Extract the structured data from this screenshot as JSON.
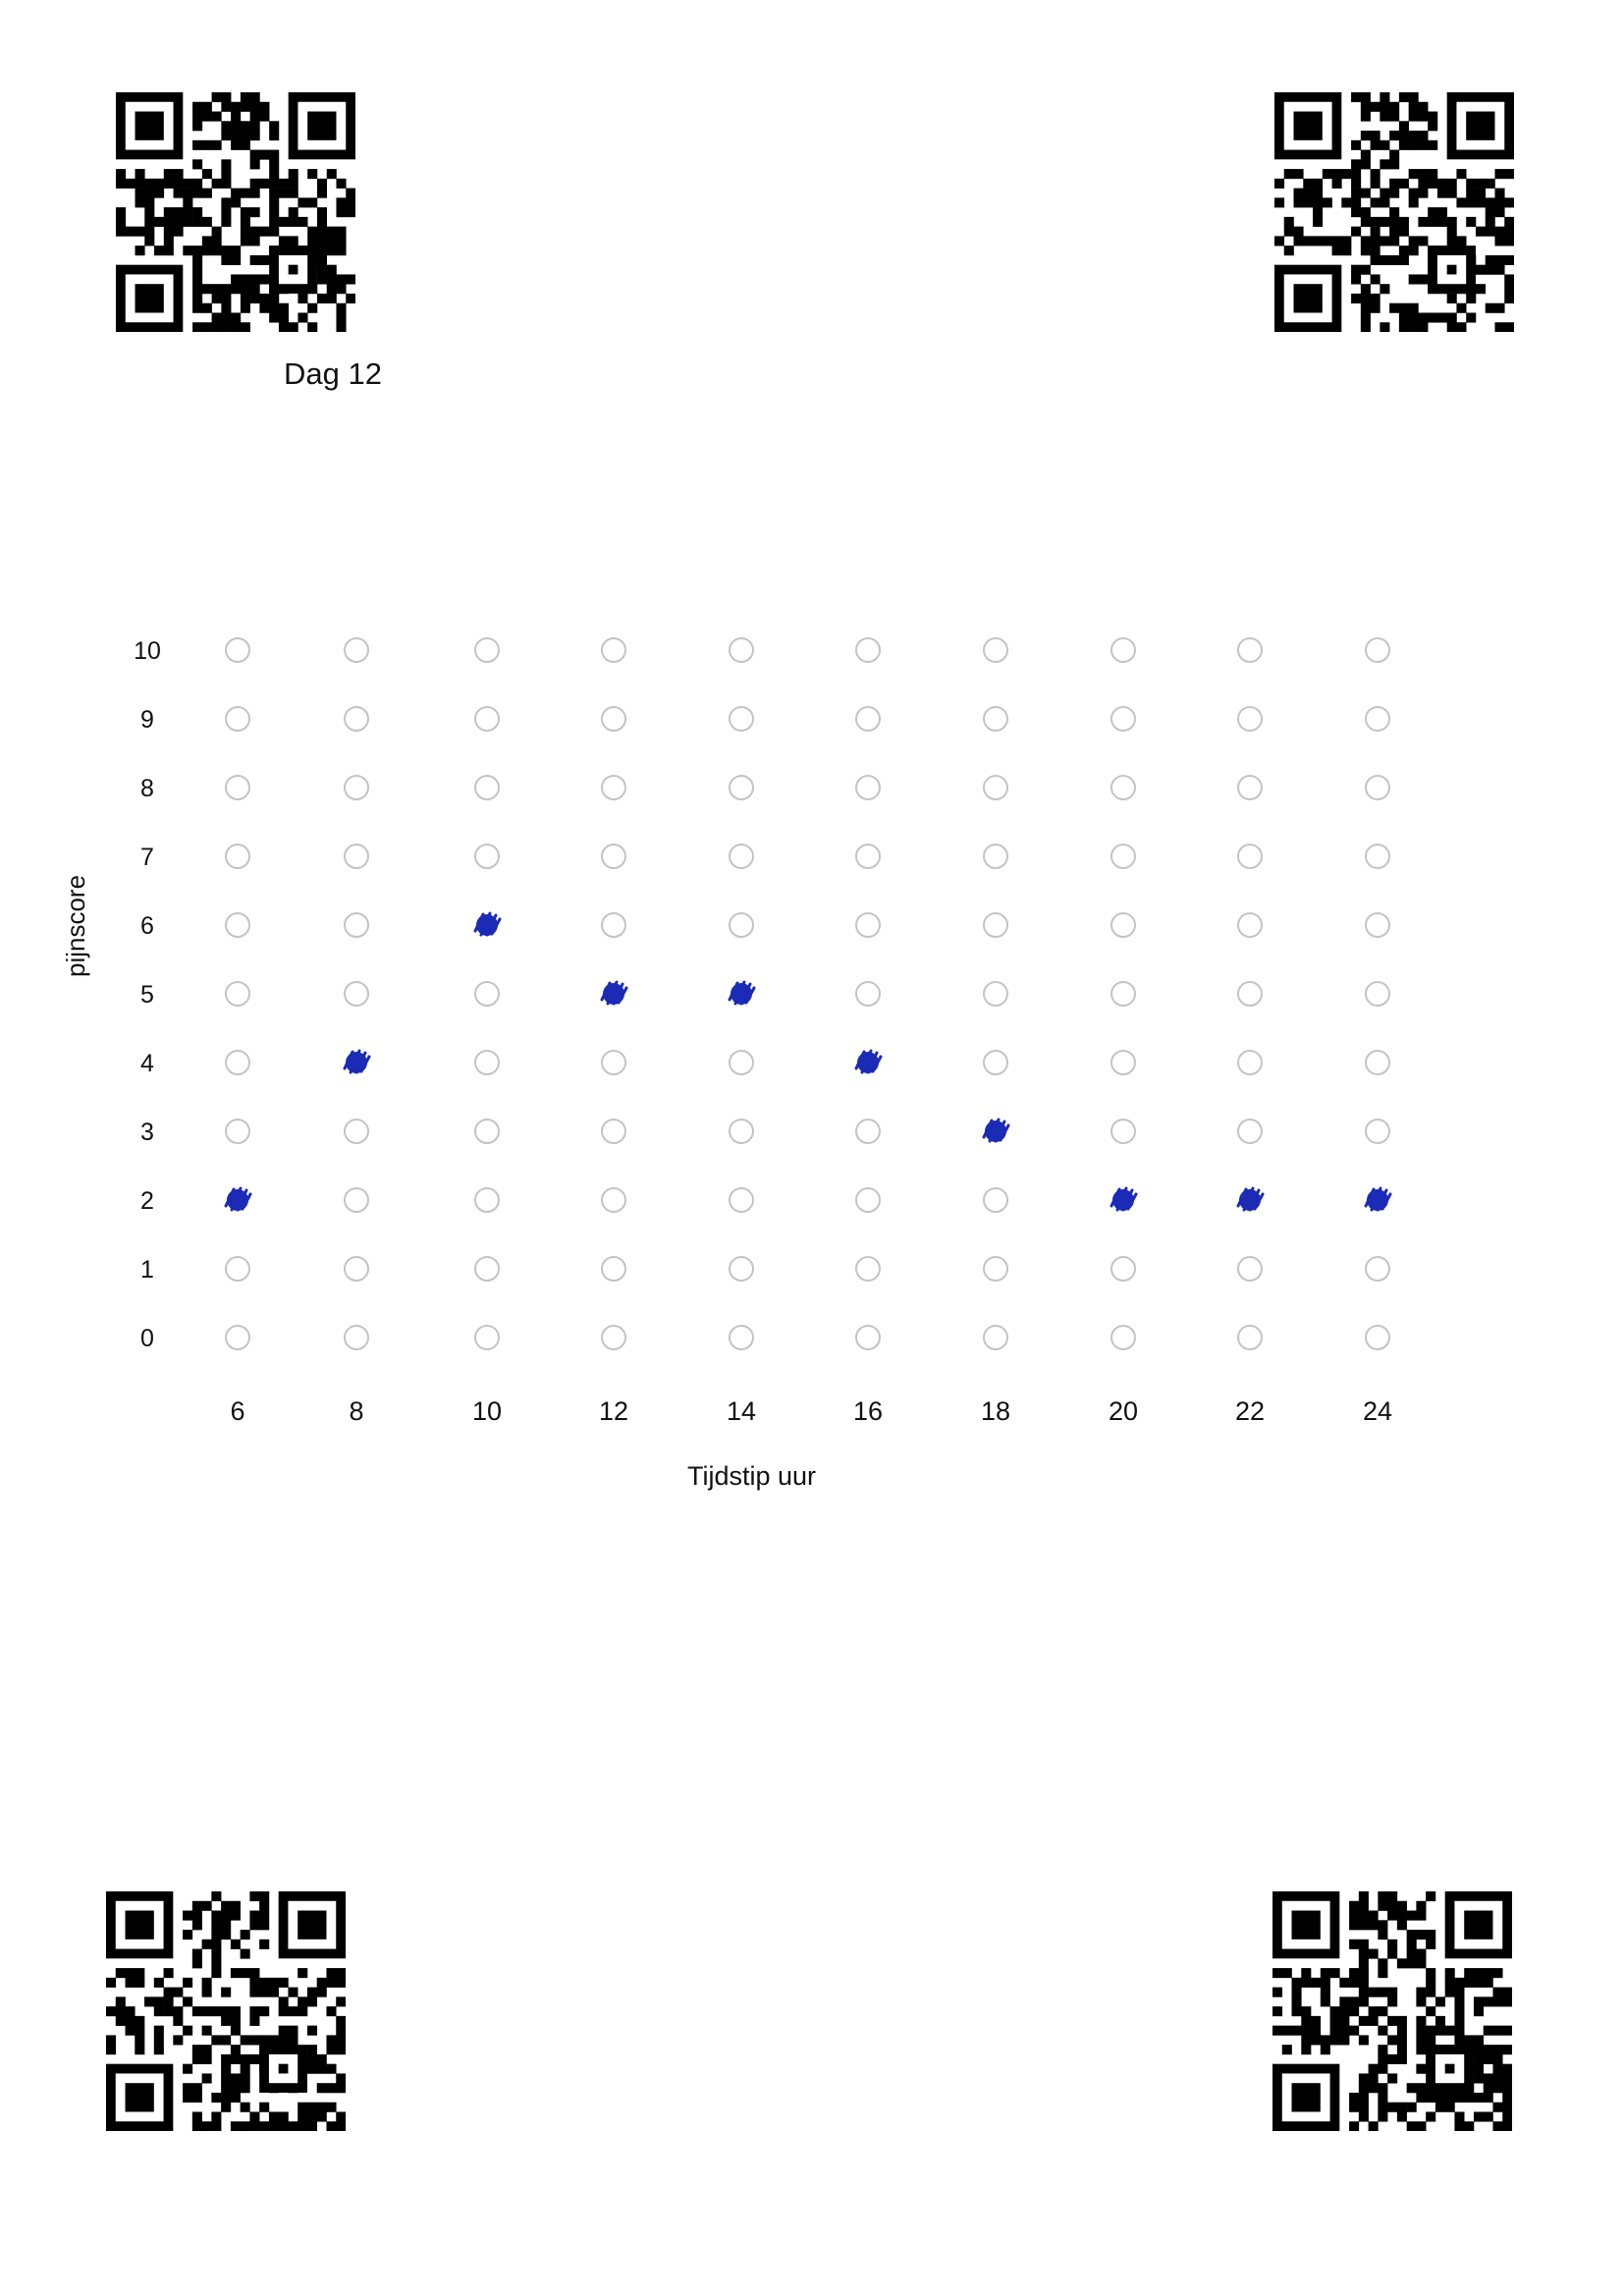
{
  "header": {
    "day_label": "Dag 12"
  },
  "chart_data": {
    "type": "scatter",
    "xlabel": "Tijdstip uur",
    "ylabel": "pijnscore",
    "x_ticks": [
      6,
      8,
      10,
      12,
      14,
      16,
      18,
      20,
      22,
      24
    ],
    "y_ticks": [
      10,
      9,
      8,
      7,
      6,
      5,
      4,
      3,
      2,
      1,
      0
    ],
    "points": [
      {
        "x": 6,
        "y": 2
      },
      {
        "x": 8,
        "y": 4
      },
      {
        "x": 10,
        "y": 6
      },
      {
        "x": 12,
        "y": 5
      },
      {
        "x": 14,
        "y": 5
      },
      {
        "x": 16,
        "y": 4
      },
      {
        "x": 18,
        "y": 3
      },
      {
        "x": 20,
        "y": 2
      },
      {
        "x": 22,
        "y": 2
      },
      {
        "x": 24,
        "y": 2
      }
    ],
    "mark_color": "#1b2bb5",
    "empty_circle_color": "#c4c4c4"
  },
  "qr_codes": [
    "qr-code-icon",
    "qr-code-icon",
    "qr-code-icon",
    "qr-code-icon"
  ]
}
